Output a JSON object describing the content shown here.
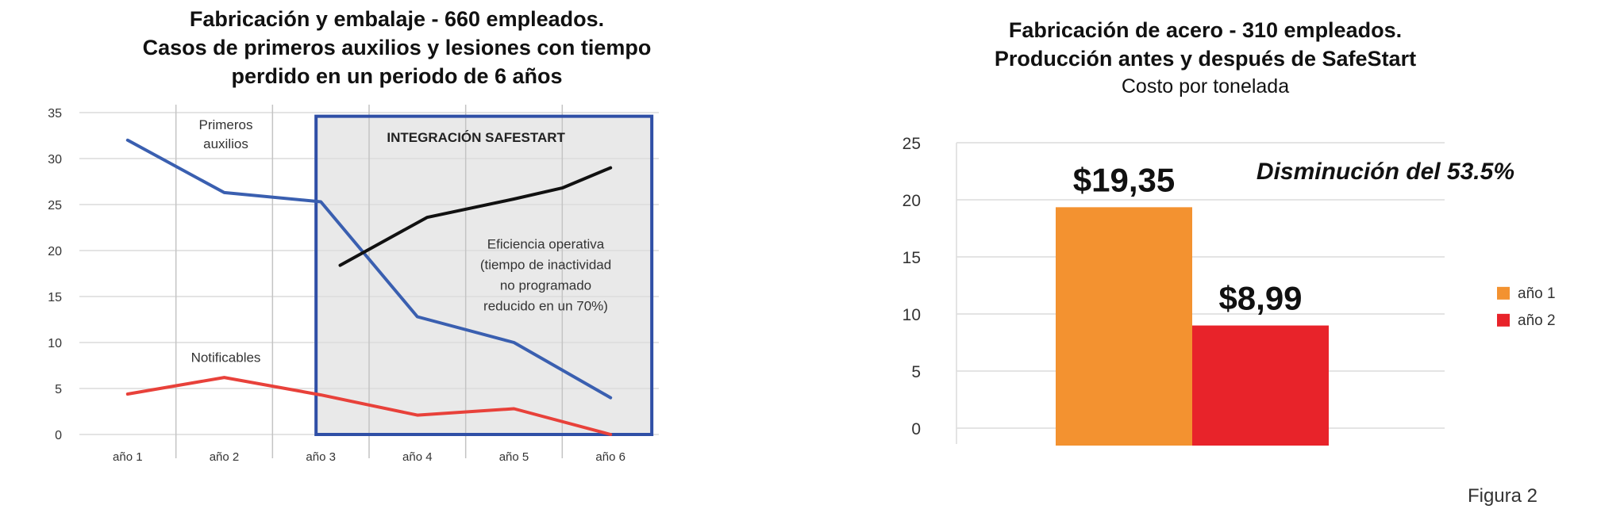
{
  "chart_data": [
    {
      "type": "line",
      "title_lines": [
        "Fabricación y embalaje - 660 empleados.",
        "Casos de primeros auxilios y lesiones con tiempo",
        "perdido en un periodo de 6 años"
      ],
      "categories": [
        "año 1",
        "año 2",
        "año 3",
        "año 4",
        "año 5",
        "año 6"
      ],
      "ylim": [
        0,
        35
      ],
      "yticks": [
        0,
        5,
        10,
        15,
        20,
        25,
        30,
        35
      ],
      "grid": true,
      "series": [
        {
          "name": "Primeros auxilios",
          "color": "#3a5fb0",
          "x": [
            "año 1",
            "año 2",
            "año 3",
            "año 4",
            "año 5",
            "año 6"
          ],
          "values": [
            32,
            26.3,
            25.3,
            12.8,
            10,
            4
          ]
        },
        {
          "name": "Notificables",
          "color": "#e8413a",
          "x": [
            "año 1",
            "año 2",
            "año 3",
            "año 4",
            "año 5",
            "año 6"
          ],
          "values": [
            4.4,
            6.2,
            4.3,
            2.1,
            2.8,
            0
          ]
        },
        {
          "name": "",
          "color": "#111111",
          "x": [
            "año 3",
            "año 4",
            "año 5",
            "año 5.5",
            "año 6"
          ],
          "x_index": [
            2.2,
            3.1,
            4.0,
            4.5,
            5.0
          ],
          "values": [
            18.4,
            23.6,
            25.6,
            26.8,
            29
          ]
        }
      ],
      "series_labels": {
        "first_aid": [
          "Primeros",
          "auxilios"
        ],
        "reportable": "Notificables"
      },
      "highlight_box": {
        "label": "INTEGRACIÓN SAFESTART",
        "from": "año 3",
        "to": "año 6"
      },
      "annotation": [
        "Eficiencia operativa",
        "(tiempo de inactividad",
        "no programado",
        "reducido en un 70%)"
      ]
    },
    {
      "type": "bar",
      "title_lines": [
        "Fabricación de acero - 310 empleados.",
        "Producción antes y después de SafeStart"
      ],
      "subtitle": "Costo por tonelada",
      "categories": [
        "año 1",
        "año 2"
      ],
      "values": [
        19.35,
        8.99
      ],
      "data_labels": [
        "$19,35",
        "$8,99"
      ],
      "colors": [
        "#f39230",
        "#e8232a"
      ],
      "ylim": [
        0,
        25
      ],
      "yticks": [
        0,
        5,
        10,
        15,
        20,
        25
      ],
      "grid": true,
      "legend": {
        "position": "right",
        "items": [
          "año 1",
          "año 2"
        ]
      },
      "annotation": "Disminución del 53.5%"
    }
  ],
  "caption": "Figura 2"
}
